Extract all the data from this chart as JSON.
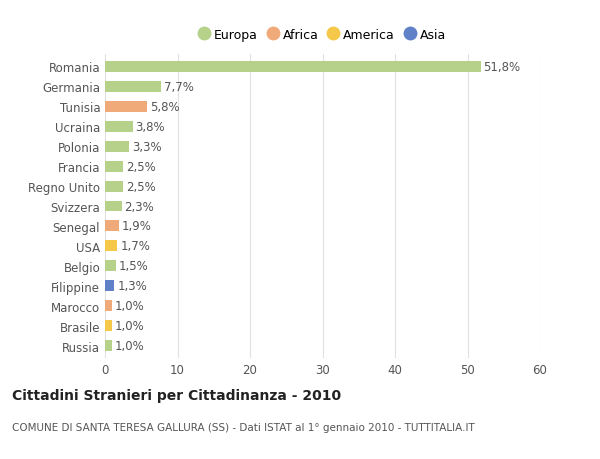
{
  "categories": [
    "Romania",
    "Germania",
    "Tunisia",
    "Ucraina",
    "Polonia",
    "Francia",
    "Regno Unito",
    "Svizzera",
    "Senegal",
    "USA",
    "Belgio",
    "Filippine",
    "Marocco",
    "Brasile",
    "Russia"
  ],
  "values": [
    51.8,
    7.7,
    5.8,
    3.8,
    3.3,
    2.5,
    2.5,
    2.3,
    1.9,
    1.7,
    1.5,
    1.3,
    1.0,
    1.0,
    1.0
  ],
  "labels": [
    "51,8%",
    "7,7%",
    "5,8%",
    "3,8%",
    "3,3%",
    "2,5%",
    "2,5%",
    "2,3%",
    "1,9%",
    "1,7%",
    "1,5%",
    "1,3%",
    "1,0%",
    "1,0%",
    "1,0%"
  ],
  "colors": [
    "#b5d18a",
    "#b5d18a",
    "#f0aa7a",
    "#b5d18a",
    "#b5d18a",
    "#b5d18a",
    "#b5d18a",
    "#b5d18a",
    "#f0aa7a",
    "#f5c84a",
    "#b5d18a",
    "#6080c8",
    "#f0aa7a",
    "#f5c84a",
    "#b5d18a"
  ],
  "legend": [
    {
      "label": "Europa",
      "color": "#b5d18a"
    },
    {
      "label": "Africa",
      "color": "#f0aa7a"
    },
    {
      "label": "America",
      "color": "#f5c84a"
    },
    {
      "label": "Asia",
      "color": "#6080c8"
    }
  ],
  "xlim": [
    0,
    60
  ],
  "xticks": [
    0,
    10,
    20,
    30,
    40,
    50,
    60
  ],
  "title_main": "Cittadini Stranieri per Cittadinanza - 2010",
  "title_sub": "COMUNE DI SANTA TERESA GALLURA (SS) - Dati ISTAT al 1° gennaio 2010 - TUTTITALIA.IT",
  "background_color": "#ffffff",
  "bar_height": 0.55,
  "grid_color": "#e0e0e0",
  "label_fontsize": 8.5,
  "tick_fontsize": 8.5
}
